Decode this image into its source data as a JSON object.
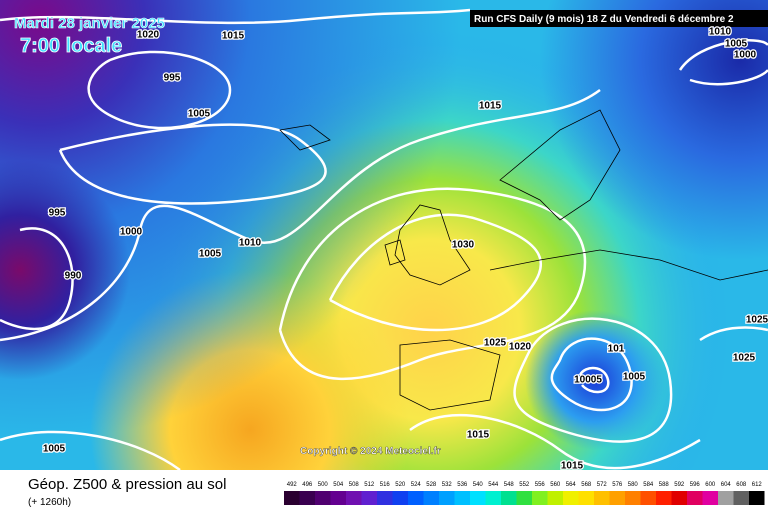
{
  "header": {
    "date": "Mardi 28 janvier 2025",
    "time": "7:00 locale",
    "run": "Run CFS Daily (9 mois) 18 Z du Vendredi 6 décembre 2"
  },
  "isobar_labels": [
    "1020",
    "1015",
    "995",
    "1005",
    "1015",
    "995",
    "1000",
    "1010",
    "1005",
    "990",
    "1030",
    "1025",
    "1020",
    "101",
    "10005",
    "1005",
    "1025",
    "1025",
    "1015",
    "1015",
    "1005",
    "1010",
    "1005",
    "1000"
  ],
  "copyright": "Copyright © 2024 Meteociel.fr",
  "footer": {
    "title": "Géop. Z500 & pression au sol",
    "lead": "(+ 1260h)",
    "scale": [
      "492",
      "496",
      "500",
      "504",
      "508",
      "512",
      "516",
      "520",
      "524",
      "528",
      "532",
      "536",
      "540",
      "544",
      "548",
      "552",
      "556",
      "560",
      "564",
      "568",
      "572",
      "576",
      "580",
      "584",
      "588",
      "592",
      "596",
      "600",
      "604",
      "608",
      "612"
    ]
  }
}
